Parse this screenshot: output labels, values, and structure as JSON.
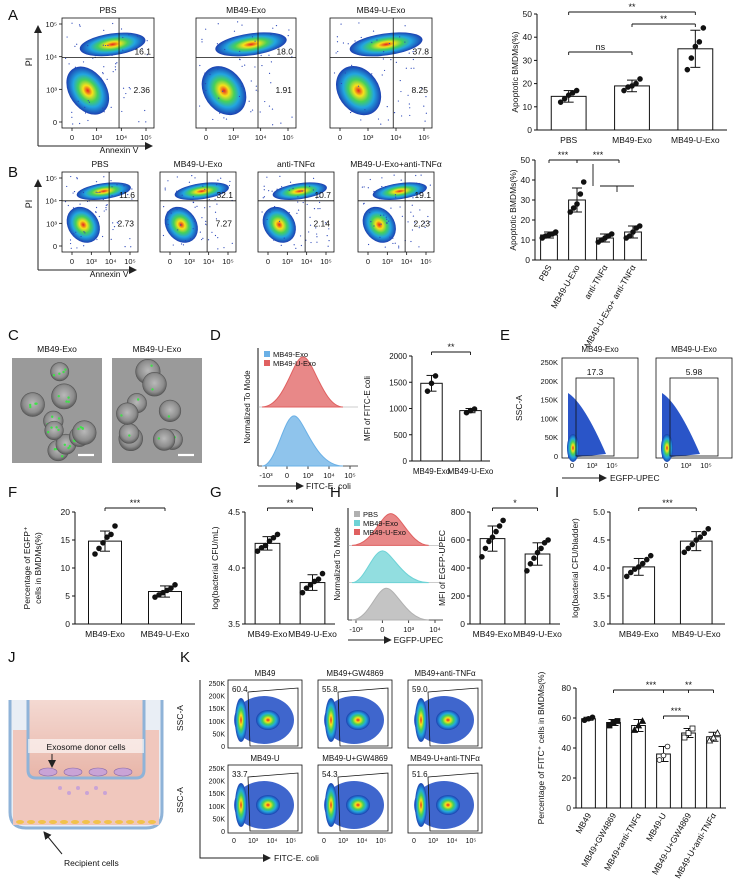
{
  "panels": {
    "A": {
      "letter": "A",
      "flow": {
        "y_axis": "PI",
        "x_axis": "Annexin V",
        "y_ticks": [
          "10⁵",
          "10⁴",
          "10³",
          "0"
        ],
        "x_ticks": [
          "0",
          "10³",
          "10⁴",
          "10⁵"
        ],
        "plots": [
          {
            "title": "PBS",
            "upper_right": "16.1",
            "lower_right": "2.36"
          },
          {
            "title": "MB49-Exo",
            "upper_right": "18.0",
            "lower_right": "1.91"
          },
          {
            "title": "MB49-U-Exo",
            "upper_right": "37.8",
            "lower_right": "8.25"
          }
        ]
      },
      "bar": {
        "ylabel": "Apoptotic BMDMs(%)",
        "yticks": [
          "0",
          "10",
          "20",
          "30",
          "40",
          "50"
        ],
        "ylim": [
          0,
          50
        ],
        "categories": [
          "PBS",
          "MB49-Exo",
          "MB49-U-Exo"
        ],
        "means": [
          14.5,
          19,
          35
        ],
        "errors": [
          2.5,
          2.5,
          8
        ],
        "points": [
          [
            12,
            13.5,
            15,
            16,
            17
          ],
          [
            17,
            18.5,
            19,
            20,
            22
          ],
          [
            26,
            31,
            36,
            38,
            44
          ]
        ],
        "sig": [
          {
            "from": 0,
            "to": 2,
            "label": "**"
          },
          {
            "from": 1,
            "to": 2,
            "label": "**"
          },
          {
            "from": 0,
            "to": 1,
            "label": "ns"
          }
        ]
      }
    },
    "B": {
      "letter": "B",
      "flow": {
        "y_axis": "PI",
        "x_axis": "Annexin V",
        "y_ticks": [
          "10⁵",
          "10⁴",
          "10³",
          "0"
        ],
        "x_ticks": [
          "0",
          "10³",
          "10⁴",
          "10⁵"
        ],
        "plots": [
          {
            "title": "PBS",
            "upper_right": "11.6",
            "lower_right": "2.73"
          },
          {
            "title": "MB49-U-Exo",
            "upper_right": "32.1",
            "lower_right": "7.27"
          },
          {
            "title": "anti-TNFα",
            "upper_right": "10.7",
            "lower_right": "2.14"
          },
          {
            "title": "MB49-U-Exo+anti-TNFα",
            "upper_right": "19.1",
            "lower_right": "2.23"
          }
        ]
      },
      "bar": {
        "ylabel": "Apoptotic BMDMs(%)",
        "yticks": [
          "0",
          "10",
          "20",
          "30",
          "40",
          "50"
        ],
        "ylim": [
          0,
          50
        ],
        "categories": [
          "PBS",
          "MB49-U-Exo",
          "anti-TNFα",
          "MB49-U-Exo+ anti-TNFα"
        ],
        "means": [
          12.5,
          30,
          11,
          14
        ],
        "errors": [
          1.5,
          6,
          2,
          3
        ],
        "points": [
          [
            11,
            12,
            12.5,
            13,
            14
          ],
          [
            24,
            26,
            28,
            33,
            39
          ],
          [
            9,
            10,
            11,
            12,
            13
          ],
          [
            11,
            12,
            14,
            16,
            17
          ]
        ],
        "sig": [
          {
            "from": 0,
            "to": 1,
            "label": "***"
          },
          {
            "from": 1,
            "to": 2.5,
            "label": "***"
          }
        ]
      }
    },
    "C": {
      "letter": "C",
      "images": [
        "MB49-Exo",
        "MB49-U-Exo"
      ]
    },
    "D": {
      "letter": "D",
      "hist": {
        "ylabel": "Normalized To Mode",
        "xlabel": "FITC-E. coli",
        "xticks": [
          "-10³",
          "0",
          "10³",
          "10⁴",
          "10⁵"
        ],
        "legend": [
          "MB49-Exo",
          "MB49-U-Exo"
        ],
        "colors": [
          "#6ab0e6",
          "#e06060"
        ]
      },
      "bar": {
        "ylabel": "MFI of FITC-E coli",
        "yticks": [
          "0",
          "500",
          "1000",
          "1500",
          "2000"
        ],
        "ylim": [
          0,
          2000
        ],
        "categories": [
          "MB49-Exo",
          "MB49-U-Exo"
        ],
        "means": [
          1480,
          960
        ],
        "errors": [
          150,
          40
        ],
        "points": [
          [
            1330,
            1480,
            1620
          ],
          [
            920,
            960,
            990
          ]
        ],
        "sig": [
          {
            "from": 0,
            "to": 1,
            "label": "**"
          }
        ]
      }
    },
    "E": {
      "letter": "E",
      "ylabel": "SSC-A",
      "xlabel": "EGFP-UPEC",
      "yticks": [
        "250K",
        "200K",
        "150K",
        "100K",
        "50K",
        "0"
      ],
      "xticks": [
        "0",
        "10³",
        "10⁵"
      ],
      "plots": [
        {
          "title": "MB49-Exo",
          "gate": "17.3"
        },
        {
          "title": "MB49-U-Exo",
          "gate": "5.98"
        }
      ]
    },
    "F": {
      "letter": "F",
      "bar": {
        "ylabel_lines": [
          "Percentage of EGFP⁺",
          "cells in BMDMs(%)"
        ],
        "yticks": [
          "0",
          "5",
          "10",
          "15",
          "20"
        ],
        "ylim": [
          0,
          20
        ],
        "categories": [
          "MB49-Exo",
          "MB49-U-Exo"
        ],
        "means": [
          14.8,
          5.8
        ],
        "errors": [
          1.8,
          1.0
        ],
        "points": [
          [
            12.5,
            13.5,
            14.5,
            15.5,
            16,
            17.5
          ],
          [
            4.8,
            5.2,
            5.6,
            6.0,
            6.4,
            7.0
          ]
        ],
        "sig": [
          {
            "from": 0,
            "to": 1,
            "label": "***"
          }
        ]
      }
    },
    "G": {
      "letter": "G",
      "bar": {
        "ylabel": "log(bacterial CFU/mL)",
        "yticks": [
          "3.5",
          "4.0",
          "4.5"
        ],
        "ylim": [
          3.5,
          4.5
        ],
        "categories": [
          "MB49-Exo",
          "MB49-U-Exo"
        ],
        "means": [
          4.22,
          3.87
        ],
        "errors": [
          0.06,
          0.07
        ],
        "points": [
          [
            4.15,
            4.18,
            4.2,
            4.24,
            4.27,
            4.3
          ],
          [
            3.78,
            3.82,
            3.85,
            3.88,
            3.9,
            3.95
          ]
        ],
        "sig": [
          {
            "from": 0,
            "to": 1,
            "label": "**"
          }
        ]
      }
    },
    "H": {
      "letter": "H",
      "hist": {
        "ylabel": "Normalized To Mode",
        "xlabel": "EGFP-UPEC",
        "xticks": [
          "-10³",
          "0",
          "10³",
          "10⁴"
        ],
        "legend": [
          "PBS",
          "MB49-Exo",
          "MB49-U-Exo"
        ],
        "colors": [
          "#b0b0b0",
          "#6ed3d6",
          "#e06060"
        ]
      },
      "bar": {
        "ylabel": "MFI of EGFP-UPEC",
        "yticks": [
          "0",
          "200",
          "400",
          "600",
          "800"
        ],
        "ylim": [
          0,
          800
        ],
        "categories": [
          "MB49-Exo",
          "MB49-U-Exo"
        ],
        "means": [
          610,
          500
        ],
        "errors": [
          90,
          80
        ],
        "points": [
          [
            480,
            540,
            590,
            620,
            660,
            700,
            740
          ],
          [
            380,
            430,
            470,
            510,
            540,
            580,
            600
          ]
        ],
        "sig": [
          {
            "from": 0,
            "to": 1,
            "label": "*"
          }
        ]
      }
    },
    "I": {
      "letter": "I",
      "bar": {
        "ylabel": "log(bacterial CFU/bladder)",
        "yticks": [
          "3.0",
          "3.5",
          "4.0",
          "4.5",
          "5.0"
        ],
        "ylim": [
          3.0,
          5.0
        ],
        "categories": [
          "MB49-Exo",
          "MB49-U-Exo"
        ],
        "means": [
          4.02,
          4.48
        ],
        "errors": [
          0.15,
          0.17
        ],
        "points": [
          [
            3.85,
            3.92,
            3.98,
            4.02,
            4.08,
            4.15,
            4.22
          ],
          [
            4.28,
            4.35,
            4.42,
            4.5,
            4.55,
            4.62,
            4.7
          ]
        ],
        "sig": [
          {
            "from": 0,
            "to": 1,
            "label": "***"
          }
        ]
      }
    },
    "J": {
      "letter": "J",
      "donor_label": "Exosome donor cells",
      "recipient_label": "Recipient cells"
    },
    "K": {
      "letter": "K",
      "ylabel": "SSC-A",
      "xlabel": "FITC-E. coli",
      "yticks": [
        "250K",
        "200K",
        "150K",
        "100K",
        "50K",
        "0"
      ],
      "xticks": [
        "0",
        "10³",
        "10⁴",
        "10⁵"
      ],
      "plots": [
        {
          "title": "MB49",
          "gate": "60.4"
        },
        {
          "title": "MB49+GW4869",
          "gate": "55.8"
        },
        {
          "title": "MB49+anti-TNFα",
          "gate": "59.0"
        },
        {
          "title": "MB49-U",
          "gate": "33.7"
        },
        {
          "title": "MB49-U+GW4869",
          "gate": "54.3"
        },
        {
          "title": "MB49-U+anti-TNFα",
          "gate": "51.6"
        }
      ],
      "bar": {
        "ylabel": "Percentage of FITC⁺ cells in BMDMs(%)",
        "yticks": [
          "0",
          "20",
          "40",
          "60",
          "80"
        ],
        "ylim": [
          0,
          80
        ],
        "categories": [
          "MB49",
          "MB49+GW4869",
          "MB49+anti-TNFα",
          "MB49-U",
          "MB49-U+GW4869",
          "MB49-U+anti-TNFα"
        ],
        "means": [
          59.5,
          57,
          55,
          36,
          50,
          47.5
        ],
        "errors": [
          1,
          2,
          4,
          5,
          3,
          3
        ],
        "points": [
          [
            58.5,
            59.5,
            60.5
          ],
          [
            55,
            57,
            58
          ],
          [
            52,
            55,
            58
          ],
          [
            32,
            35,
            41
          ],
          [
            47,
            50,
            53
          ],
          [
            45,
            47,
            50
          ]
        ],
        "markers": [
          "circle",
          "square",
          "triangle",
          "circle-open",
          "square-open",
          "triangle-open"
        ],
        "sig": [
          {
            "from": 1,
            "to": 4,
            "label": "***"
          },
          {
            "from": 3,
            "to": 5,
            "label": "**"
          },
          {
            "from": 3,
            "to": 4,
            "label": "***"
          }
        ]
      }
    }
  }
}
